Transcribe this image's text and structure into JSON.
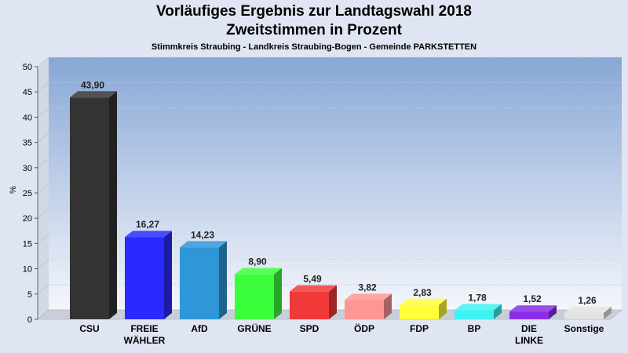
{
  "chart_data": {
    "type": "bar",
    "title": "Vorläufiges Ergebnis zur Landtagswahl 2018",
    "title2": "Zweitstimmen in Prozent",
    "subtitle": "Stimmkreis Straubing - Landkreis Straubing-Bogen - Gemeinde PARKSTETTEN",
    "ylabel": "%",
    "ylim": [
      0,
      50
    ],
    "yticks": [
      "0",
      "5",
      "10",
      "15",
      "20",
      "25",
      "30",
      "35",
      "40",
      "45",
      "50"
    ],
    "grid": true,
    "categories": [
      "CSU",
      "FREIE WÄHLER",
      "AfD",
      "GRÜNE",
      "SPD",
      "ÖDP",
      "FDP",
      "BP",
      "DIE LINKE",
      "Sonstige"
    ],
    "values": [
      43.9,
      16.27,
      14.23,
      8.9,
      5.49,
      3.82,
      2.83,
      1.78,
      1.52,
      1.26
    ],
    "value_labels": [
      "43,90",
      "16,27",
      "14,23",
      "8,90",
      "5,49",
      "3,82",
      "2,83",
      "1,78",
      "1,52",
      "1,26"
    ],
    "colors": [
      "#333333",
      "#2a2aff",
      "#2f96d8",
      "#3cff3c",
      "#f03a3a",
      "#ff9595",
      "#ffff3a",
      "#3ef2f2",
      "#8a2ce8",
      "#e3e3e3"
    ]
  }
}
